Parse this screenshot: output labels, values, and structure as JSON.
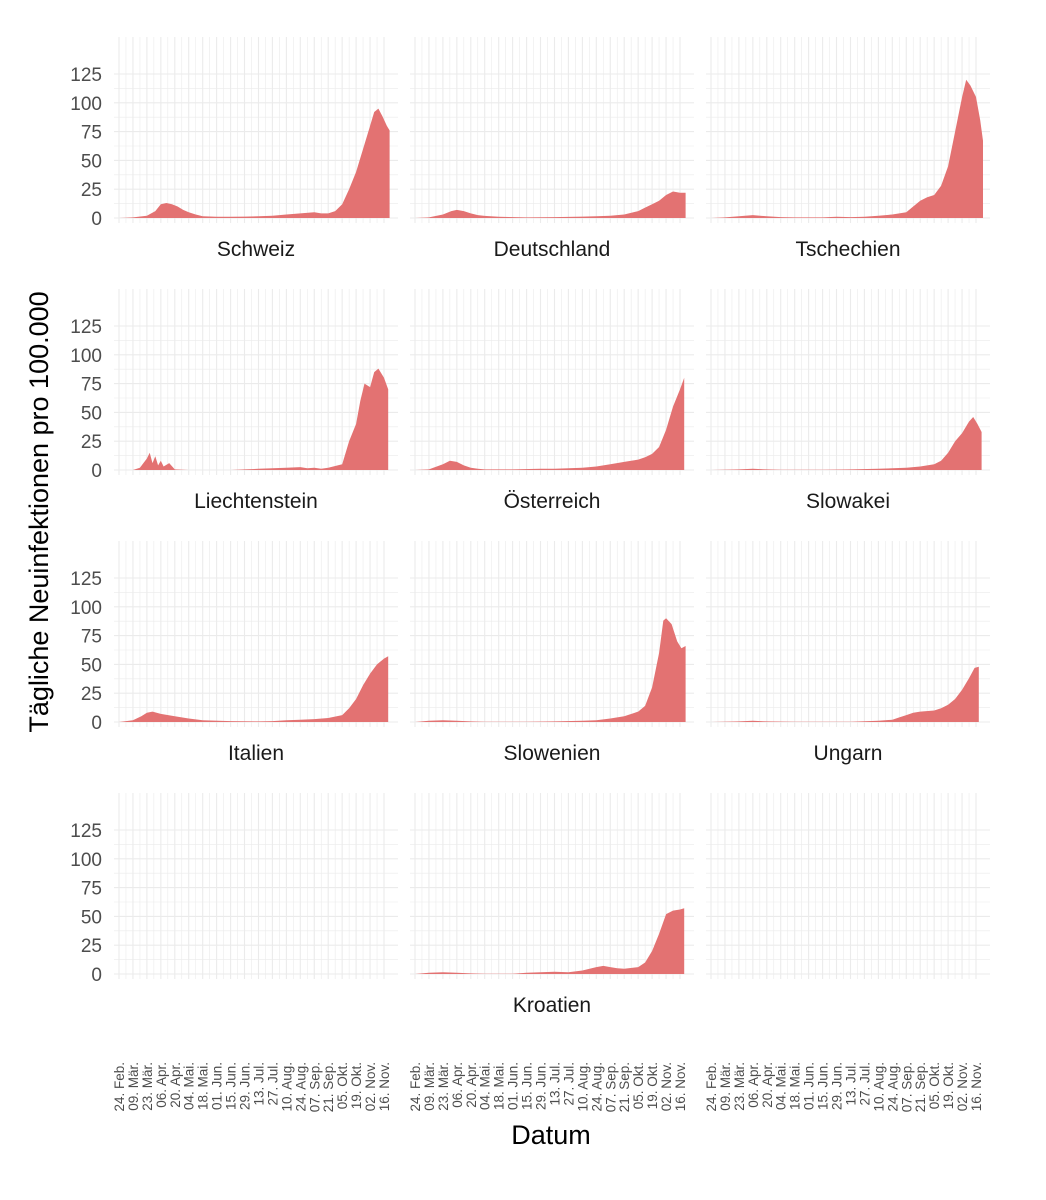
{
  "chart_data": {
    "type": "area",
    "layout": "facet-grid",
    "xlabel": "Datum",
    "ylabel": "Tägliche Neuinfektionen pro 100.000",
    "ylim": [
      0,
      125
    ],
    "yticks": [
      0,
      25,
      50,
      75,
      100,
      125
    ],
    "x_tick_labels": [
      "24. Feb.",
      "09. Mär.",
      "23. Mär.",
      "06. Apr.",
      "20. Apr.",
      "04. Mai.",
      "18. Mai.",
      "01. Jun.",
      "15. Jun.",
      "29. Jun.",
      "13. Jul.",
      "27. Jul.",
      "10. Aug.",
      "24. Aug.",
      "07. Sep.",
      "21. Sep.",
      "05. Okt.",
      "19. Okt.",
      "02. Nov.",
      "16. Nov."
    ],
    "x_unit": "week index (0 = 24. Feb., 19 = 16. Nov.)",
    "fill_color": "#E37272",
    "grid": true,
    "facets": [
      {
        "name": "Schweiz",
        "x_axis": false,
        "points": [
          [
            0,
            0
          ],
          [
            1,
            0.5
          ],
          [
            2,
            2
          ],
          [
            2.6,
            6
          ],
          [
            3,
            12
          ],
          [
            3.4,
            13
          ],
          [
            3.8,
            12
          ],
          [
            4.2,
            10
          ],
          [
            4.6,
            7
          ],
          [
            5,
            5
          ],
          [
            5.5,
            3
          ],
          [
            6,
            1.5
          ],
          [
            7,
            1
          ],
          [
            8,
            1
          ],
          [
            9,
            1.2
          ],
          [
            10,
            1.5
          ],
          [
            11,
            2
          ],
          [
            12,
            3
          ],
          [
            13,
            4
          ],
          [
            14,
            5
          ],
          [
            14.5,
            4
          ],
          [
            15,
            4
          ],
          [
            15.5,
            6
          ],
          [
            16,
            12
          ],
          [
            16.5,
            25
          ],
          [
            17,
            40
          ],
          [
            17.5,
            60
          ],
          [
            18,
            80
          ],
          [
            18.3,
            92
          ],
          [
            18.6,
            95
          ],
          [
            18.9,
            88
          ],
          [
            19.2,
            80
          ],
          [
            19.4,
            76
          ]
        ]
      },
      {
        "name": "Deutschland",
        "x_axis": false,
        "points": [
          [
            0,
            0
          ],
          [
            1,
            0.5
          ],
          [
            2,
            3
          ],
          [
            2.6,
            6
          ],
          [
            3,
            7
          ],
          [
            3.5,
            6
          ],
          [
            4,
            4
          ],
          [
            4.5,
            2.5
          ],
          [
            5,
            1.8
          ],
          [
            6,
            1
          ],
          [
            8,
            0.5
          ],
          [
            10,
            0.8
          ],
          [
            12,
            1.2
          ],
          [
            13,
            1.5
          ],
          [
            14,
            2
          ],
          [
            15,
            3
          ],
          [
            16,
            6
          ],
          [
            16.5,
            9
          ],
          [
            17,
            12
          ],
          [
            17.5,
            15
          ],
          [
            18,
            20
          ],
          [
            18.5,
            23
          ],
          [
            19,
            22
          ],
          [
            19.4,
            22
          ]
        ]
      },
      {
        "name": "Tschechien",
        "x_axis": false,
        "points": [
          [
            0,
            0
          ],
          [
            1,
            0.5
          ],
          [
            2,
            1.5
          ],
          [
            3,
            2.5
          ],
          [
            4,
            1.5
          ],
          [
            5,
            0.8
          ],
          [
            6,
            0.5
          ],
          [
            8,
            0.5
          ],
          [
            9,
            1
          ],
          [
            10,
            0.8
          ],
          [
            11,
            1
          ],
          [
            12,
            2
          ],
          [
            13,
            3
          ],
          [
            14,
            5
          ],
          [
            14.5,
            10
          ],
          [
            15,
            15
          ],
          [
            15.5,
            18
          ],
          [
            16,
            20
          ],
          [
            16.5,
            28
          ],
          [
            17,
            45
          ],
          [
            17.5,
            75
          ],
          [
            18,
            105
          ],
          [
            18.3,
            120
          ],
          [
            18.6,
            115
          ],
          [
            19,
            105
          ],
          [
            19.3,
            85
          ],
          [
            19.5,
            67
          ]
        ]
      },
      {
        "name": "Liechtenstein",
        "x_axis": false,
        "points": [
          [
            0,
            0
          ],
          [
            1,
            0
          ],
          [
            1.5,
            2
          ],
          [
            2,
            10
          ],
          [
            2.2,
            15
          ],
          [
            2.4,
            6
          ],
          [
            2.6,
            12
          ],
          [
            2.8,
            4
          ],
          [
            3,
            8
          ],
          [
            3.2,
            3
          ],
          [
            3.6,
            6
          ],
          [
            4,
            0.5
          ],
          [
            5,
            0
          ],
          [
            8,
            0
          ],
          [
            9,
            0.5
          ],
          [
            10,
            1
          ],
          [
            11,
            1.5
          ],
          [
            12,
            2
          ],
          [
            13,
            2.5
          ],
          [
            13.5,
            1.5
          ],
          [
            14,
            2
          ],
          [
            14.5,
            1
          ],
          [
            15,
            2
          ],
          [
            16,
            5
          ],
          [
            16.5,
            25
          ],
          [
            17,
            40
          ],
          [
            17.3,
            60
          ],
          [
            17.6,
            75
          ],
          [
            18,
            72
          ],
          [
            18.3,
            85
          ],
          [
            18.6,
            88
          ],
          [
            19,
            80
          ],
          [
            19.3,
            70
          ]
        ]
      },
      {
        "name": "Österreich",
        "x_axis": false,
        "points": [
          [
            0,
            0
          ],
          [
            1,
            0.5
          ],
          [
            2,
            5
          ],
          [
            2.5,
            8
          ],
          [
            3,
            7
          ],
          [
            3.5,
            4
          ],
          [
            4,
            2
          ],
          [
            4.5,
            1
          ],
          [
            5,
            0.5
          ],
          [
            7,
            0.5
          ],
          [
            9,
            1
          ],
          [
            10,
            1
          ],
          [
            11,
            1.5
          ],
          [
            12,
            2
          ],
          [
            13,
            3
          ],
          [
            14,
            5
          ],
          [
            15,
            7
          ],
          [
            15.5,
            8
          ],
          [
            16,
            9
          ],
          [
            16.5,
            11
          ],
          [
            17,
            14
          ],
          [
            17.5,
            20
          ],
          [
            18,
            35
          ],
          [
            18.5,
            55
          ],
          [
            19,
            70
          ],
          [
            19.3,
            80
          ]
        ]
      },
      {
        "name": "Slowakei",
        "x_axis": false,
        "points": [
          [
            0,
            0
          ],
          [
            2,
            0.5
          ],
          [
            3,
            1
          ],
          [
            4,
            0.5
          ],
          [
            5,
            0.2
          ],
          [
            8,
            0.2
          ],
          [
            10,
            0.5
          ],
          [
            12,
            1
          ],
          [
            13,
            1.5
          ],
          [
            14,
            2
          ],
          [
            15,
            3
          ],
          [
            16,
            5
          ],
          [
            16.5,
            8
          ],
          [
            17,
            15
          ],
          [
            17.5,
            25
          ],
          [
            18,
            32
          ],
          [
            18.5,
            42
          ],
          [
            18.8,
            46
          ],
          [
            19.1,
            40
          ],
          [
            19.4,
            33
          ]
        ]
      },
      {
        "name": "Italien",
        "x_axis": false,
        "points": [
          [
            0,
            0
          ],
          [
            1,
            1.5
          ],
          [
            1.6,
            5
          ],
          [
            2,
            8
          ],
          [
            2.4,
            9
          ],
          [
            3,
            7
          ],
          [
            4,
            5
          ],
          [
            5,
            3
          ],
          [
            6,
            1.5
          ],
          [
            8,
            0.8
          ],
          [
            10,
            0.5
          ],
          [
            11,
            0.8
          ],
          [
            12,
            1.5
          ],
          [
            13,
            2
          ],
          [
            14,
            2.5
          ],
          [
            15,
            3.5
          ],
          [
            16,
            6
          ],
          [
            16.5,
            12
          ],
          [
            17,
            20
          ],
          [
            17.5,
            32
          ],
          [
            18,
            42
          ],
          [
            18.5,
            50
          ],
          [
            19,
            55
          ],
          [
            19.3,
            57
          ]
        ]
      },
      {
        "name": "Slowenien",
        "x_axis": false,
        "points": [
          [
            0,
            0
          ],
          [
            1,
            1
          ],
          [
            2,
            1.5
          ],
          [
            3,
            1
          ],
          [
            4,
            0.5
          ],
          [
            5,
            0.3
          ],
          [
            8,
            0.3
          ],
          [
            10,
            0.5
          ],
          [
            12,
            1
          ],
          [
            13,
            1.5
          ],
          [
            14,
            3
          ],
          [
            15,
            5
          ],
          [
            16,
            9
          ],
          [
            16.5,
            14
          ],
          [
            17,
            30
          ],
          [
            17.5,
            60
          ],
          [
            17.8,
            88
          ],
          [
            18,
            90
          ],
          [
            18.4,
            85
          ],
          [
            18.8,
            70
          ],
          [
            19.1,
            64
          ],
          [
            19.4,
            66
          ]
        ]
      },
      {
        "name": "Ungarn",
        "x_axis": false,
        "points": [
          [
            0,
            0
          ],
          [
            2,
            0.5
          ],
          [
            3,
            1
          ],
          [
            4,
            0.5
          ],
          [
            6,
            0.2
          ],
          [
            10,
            0.3
          ],
          [
            12,
            1
          ],
          [
            13,
            2
          ],
          [
            13.5,
            4
          ],
          [
            14,
            6
          ],
          [
            14.5,
            8
          ],
          [
            15,
            9
          ],
          [
            16,
            10
          ],
          [
            16.5,
            12
          ],
          [
            17,
            15
          ],
          [
            17.5,
            20
          ],
          [
            18,
            28
          ],
          [
            18.5,
            38
          ],
          [
            18.9,
            47
          ],
          [
            19.2,
            48
          ]
        ]
      },
      {
        "name": "",
        "x_axis": true,
        "points": []
      },
      {
        "name": "Kroatien",
        "x_axis": true,
        "points": [
          [
            0,
            0
          ],
          [
            1,
            1
          ],
          [
            2,
            1.5
          ],
          [
            3,
            1
          ],
          [
            4,
            0.5
          ],
          [
            5,
            0.2
          ],
          [
            7,
            0.2
          ],
          [
            8,
            1
          ],
          [
            9,
            1.5
          ],
          [
            10,
            2
          ],
          [
            11,
            1.5
          ],
          [
            12,
            3
          ],
          [
            13,
            6
          ],
          [
            13.5,
            7
          ],
          [
            14,
            6
          ],
          [
            14.5,
            5
          ],
          [
            15,
            4.5
          ],
          [
            16,
            6
          ],
          [
            16.5,
            10
          ],
          [
            17,
            20
          ],
          [
            17.5,
            35
          ],
          [
            18,
            52
          ],
          [
            18.5,
            55
          ],
          [
            19,
            56
          ],
          [
            19.3,
            57
          ]
        ]
      },
      {
        "name": "",
        "x_axis": true,
        "points": []
      }
    ]
  }
}
